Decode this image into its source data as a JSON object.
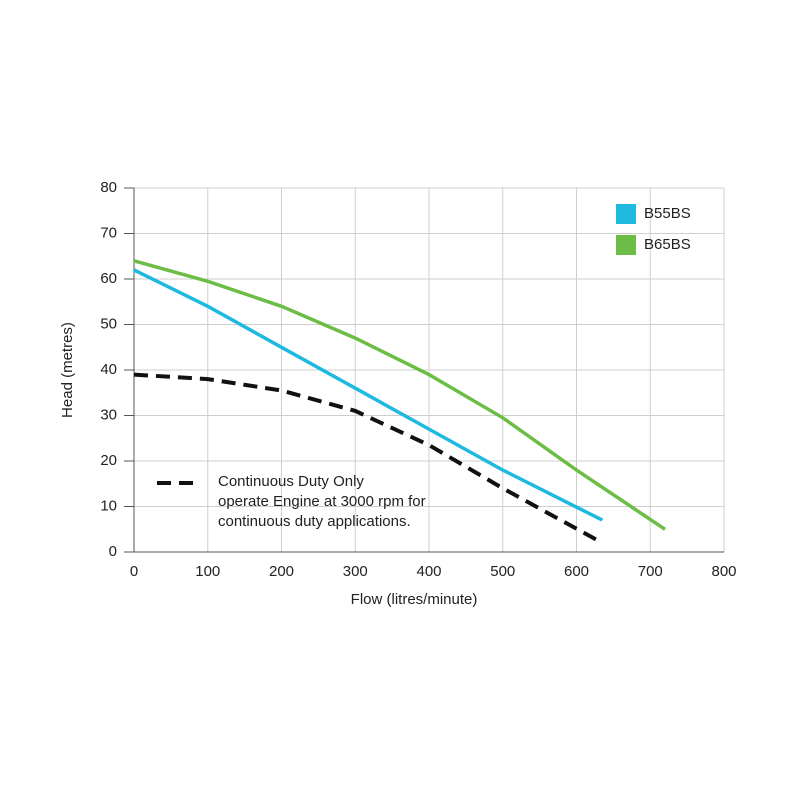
{
  "chart_data": {
    "type": "line",
    "xlabel": "Flow (litres/minute)",
    "ylabel": "Head (metres)",
    "xlim": [
      0,
      800
    ],
    "xticks": [
      0,
      100,
      200,
      300,
      400,
      500,
      600,
      700,
      800
    ],
    "ylim": [
      0,
      80
    ],
    "yticks": [
      0,
      10,
      20,
      30,
      40,
      50,
      60,
      70,
      80
    ],
    "grid": true,
    "legend": "top-right",
    "series": [
      {
        "name": "B55BS",
        "color": "#1db9e0",
        "dashed": false,
        "in_legend": true,
        "x": [
          0,
          100,
          200,
          300,
          400,
          500,
          635
        ],
        "values": [
          62,
          54,
          45,
          36,
          27,
          18,
          7
        ]
      },
      {
        "name": "B65BS",
        "color": "#6cbd45",
        "dashed": false,
        "in_legend": true,
        "x": [
          0,
          100,
          200,
          300,
          400,
          500,
          600,
          720
        ],
        "values": [
          64,
          59.5,
          54,
          47,
          39,
          29.5,
          18,
          5
        ]
      },
      {
        "name": "Continuous Duty Only",
        "color": "#111111",
        "dashed": true,
        "in_legend": false,
        "x": [
          0,
          100,
          200,
          300,
          400,
          500,
          635
        ],
        "values": [
          39,
          38,
          35.5,
          31,
          23.5,
          14,
          2
        ]
      }
    ],
    "annotations": [
      "operate Engine at 3000 rpm for",
      "continuous duty applications."
    ]
  }
}
